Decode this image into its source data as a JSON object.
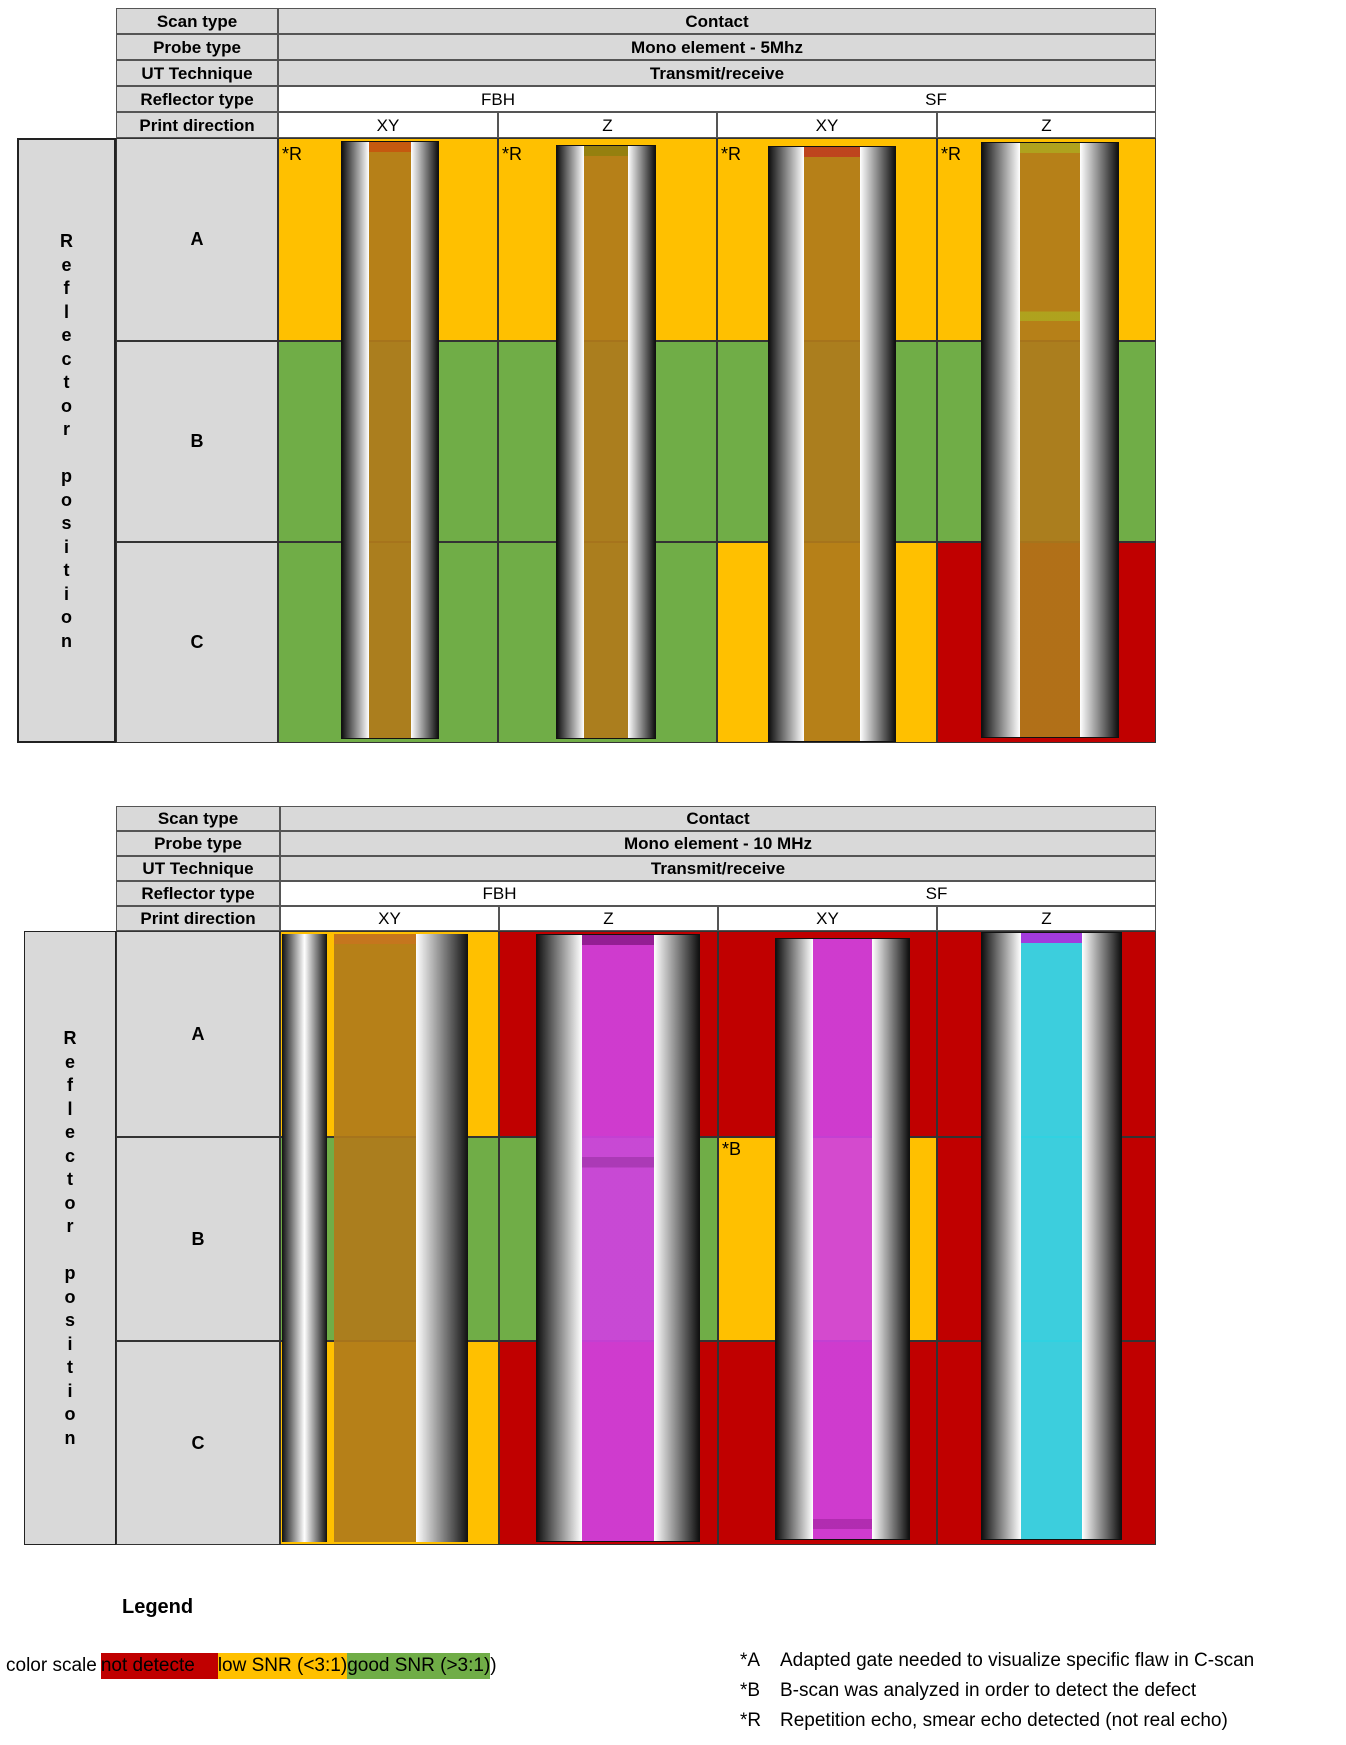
{
  "tables": [
    {
      "scan_type_label": "Scan type",
      "scan_type": "Contact",
      "probe_type_label": "Probe type",
      "probe_type": "Mono element - 5Mhz",
      "ut_label": "UT Technique",
      "ut": "Transmit/receive",
      "reflector_label": "Reflector type",
      "reflector_fbh": "FBH",
      "reflector_sf": "SF",
      "print_label": "Print direction",
      "directions": [
        "XY",
        "Z",
        "XY",
        "Z"
      ],
      "side_label": "Reflector position",
      "positions": [
        "A",
        "B",
        "C"
      ],
      "notes": [
        "*R",
        "*R",
        "*R",
        "*R"
      ]
    },
    {
      "scan_type_label": "Scan type",
      "scan_type": "Contact",
      "probe_type_label": "Probe type",
      "probe_type": "Mono element - 10 MHz",
      "ut_label": "UT Technique",
      "ut": "Transmit/receive",
      "reflector_label": "Reflector type",
      "reflector_fbh": "FBH",
      "reflector_sf": "SF",
      "print_label": "Print direction",
      "directions": [
        "XY",
        "Z",
        "XY",
        "Z"
      ],
      "side_label": "Reflector position",
      "positions": [
        "A",
        "B",
        "C"
      ],
      "note_b": "*B"
    }
  ],
  "cell_status": [
    [
      [
        "low",
        "low",
        "low",
        "low"
      ],
      [
        "good",
        "good",
        "good",
        "good"
      ],
      [
        "good",
        "good",
        "low",
        "not"
      ]
    ],
    [
      [
        "low",
        "not",
        "not",
        "not"
      ],
      [
        "good",
        "good",
        "low",
        "not"
      ],
      [
        "low",
        "not",
        "not",
        "not"
      ]
    ]
  ],
  "colors": {
    "not": "#c00000",
    "low": "#ffc000",
    "good": "#70ad47"
  },
  "legend": {
    "title": "Legend",
    "color_scale_label": "color scale",
    "not_detected": "not detecte",
    "low_snr": "low SNR (<3:1)",
    "good_snr": "good SNR (>3:1)",
    "close_paren": ")",
    "notes": [
      {
        "key": "*A",
        "text": "Adapted gate needed to visualize specific flaw in C-scan"
      },
      {
        "key": "*B",
        "text": "B-scan was analyzed in order to detect the defect"
      },
      {
        "key": "*R",
        "text": "Repetition echo, smear echo detected (not real echo)"
      }
    ]
  }
}
